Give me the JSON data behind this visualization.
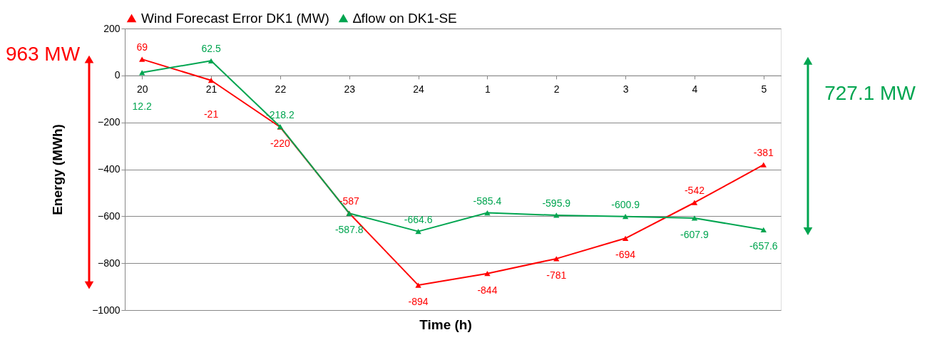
{
  "chart_data": {
    "type": "line",
    "xlabel": "Time (h)",
    "ylabel": "Energy (MWh)",
    "categories": [
      "20",
      "21",
      "22",
      "23",
      "24",
      "1",
      "2",
      "3",
      "4",
      "5"
    ],
    "series": [
      {
        "name": "Wind Forecast Error DK1 (MW)",
        "color": "#ff0000",
        "values": [
          69,
          -21,
          -220,
          -587,
          -894,
          -844,
          -781,
          -694,
          -542,
          -381
        ]
      },
      {
        "name": "∆flow on DK1-SE",
        "color": "#00a550",
        "values": [
          12.2,
          62.5,
          -218.2,
          -587.8,
          -664.6,
          -585.4,
          -595.9,
          -600.9,
          -607.9,
          -657.6
        ]
      }
    ],
    "ylim": [
      -1000,
      200
    ],
    "yticks": [
      -1000,
      -800,
      -600,
      -400,
      -200,
      0,
      200
    ],
    "grid": "y",
    "legend": "top",
    "marker": "triangle",
    "data_labels": true,
    "annotations": [
      "963 MW",
      "727.1 MW"
    ]
  }
}
